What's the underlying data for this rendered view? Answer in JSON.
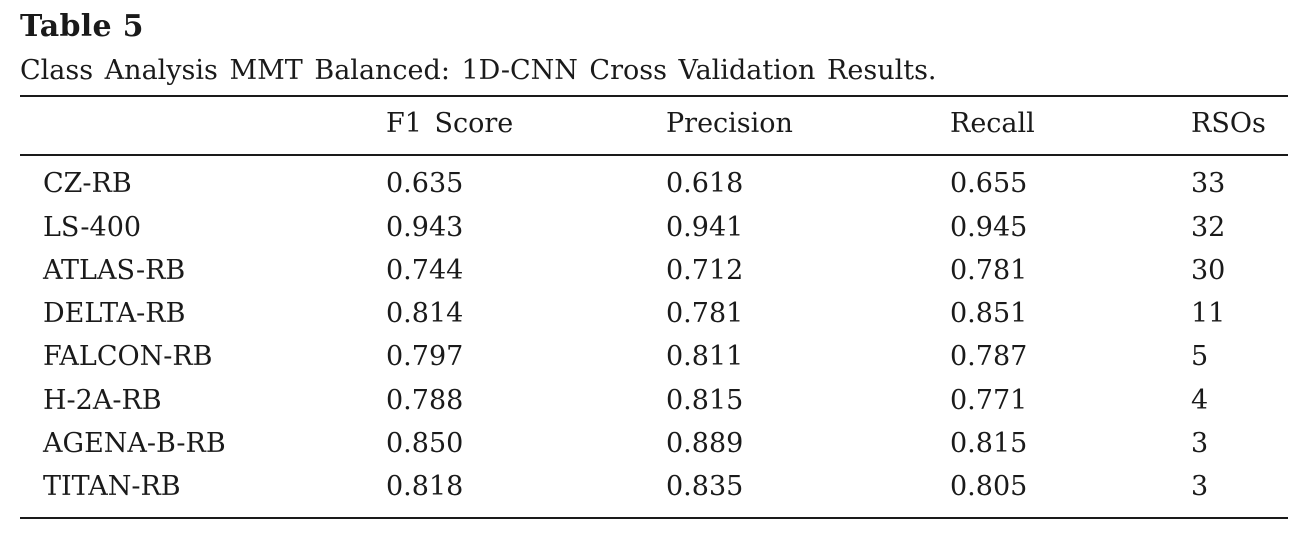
{
  "table": {
    "label": "Table 5",
    "caption": "Class Analysis MMT Balanced: 1D-CNN Cross Validation Results.",
    "columns": [
      "",
      "F1 Score",
      "Precision",
      "Recall",
      "RSOs"
    ],
    "rows": [
      [
        "CZ-RB",
        "0.635",
        "0.618",
        "0.655",
        "33"
      ],
      [
        "LS-400",
        "0.943",
        "0.941",
        "0.945",
        "32"
      ],
      [
        "ATLAS-RB",
        "0.744",
        "0.712",
        "0.781",
        "30"
      ],
      [
        "DELTA-RB",
        "0.814",
        "0.781",
        "0.851",
        "11"
      ],
      [
        "FALCON-RB",
        "0.797",
        "0.811",
        "0.787",
        "5"
      ],
      [
        "H-2A-RB",
        "0.788",
        "0.815",
        "0.771",
        "4"
      ],
      [
        "AGENA-B-RB",
        "0.850",
        "0.889",
        "0.815",
        "3"
      ],
      [
        "TITAN-RB",
        "0.818",
        "0.835",
        "0.805",
        "3"
      ]
    ]
  }
}
